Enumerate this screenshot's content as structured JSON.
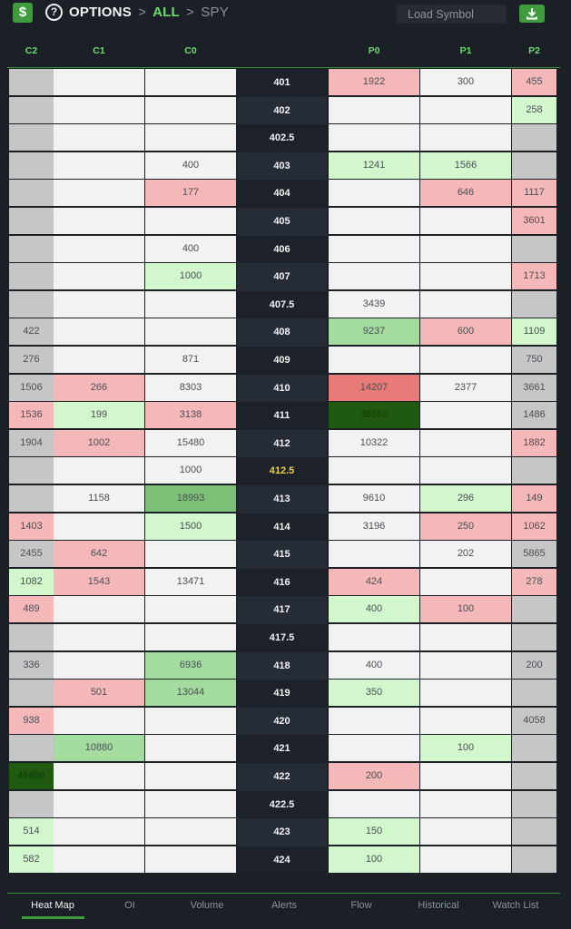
{
  "header": {
    "dollar_label": "$",
    "help_label": "?",
    "breadcrumb": {
      "options": "OPTIONS",
      "sep1": ">",
      "all": "ALL",
      "sep2": ">",
      "symbol": "SPY"
    },
    "symbol_placeholder": "Load Symbol",
    "download_icon": "download-icon"
  },
  "colors": {
    "accent": "#3f9b3d",
    "heat_red_light": "#f5b8b8",
    "heat_red_dark": "#e87a78",
    "heat_green_light": "#d2f7cc",
    "heat_green_mid": "#a4dca0",
    "heat_green_strong": "#7cc077",
    "heat_green_max": "#1f5a10"
  },
  "columns": [
    "C2",
    "C1",
    "C0",
    "P0",
    "P1",
    "P2"
  ],
  "rows": [
    {
      "strike": "401",
      "cells": [
        [
          "",
          "g"
        ],
        [
          "",
          "w"
        ],
        [
          "",
          "w"
        ],
        [
          "1922",
          "r1"
        ],
        [
          "300",
          "w"
        ],
        [
          "455",
          "r1"
        ]
      ]
    },
    {
      "strike": "402",
      "cells": [
        [
          "",
          "g"
        ],
        [
          "",
          "w"
        ],
        [
          "",
          "w"
        ],
        [
          "",
          "w"
        ],
        [
          "",
          "w"
        ],
        [
          "258",
          "g1"
        ]
      ]
    },
    {
      "strike": "402.5",
      "cells": [
        [
          "",
          "g"
        ],
        [
          "",
          "w"
        ],
        [
          "",
          "w"
        ],
        [
          "",
          "w"
        ],
        [
          "",
          "w"
        ],
        [
          "",
          "g"
        ]
      ]
    },
    {
      "strike": "403",
      "cells": [
        [
          "",
          "g"
        ],
        [
          "",
          "w"
        ],
        [
          "400",
          "w"
        ],
        [
          "1241",
          "g1"
        ],
        [
          "1566",
          "g1"
        ],
        [
          "",
          "g"
        ]
      ]
    },
    {
      "strike": "404",
      "cells": [
        [
          "",
          "g"
        ],
        [
          "",
          "w"
        ],
        [
          "177",
          "r1"
        ],
        [
          "",
          "w"
        ],
        [
          "646",
          "r1"
        ],
        [
          "1117",
          "r1"
        ]
      ]
    },
    {
      "strike": "405",
      "cells": [
        [
          "",
          "g"
        ],
        [
          "",
          "w"
        ],
        [
          "",
          "w"
        ],
        [
          "",
          "w"
        ],
        [
          "",
          "w"
        ],
        [
          "3601",
          "r1"
        ]
      ]
    },
    {
      "strike": "406",
      "cells": [
        [
          "",
          "g"
        ],
        [
          "",
          "w"
        ],
        [
          "400",
          "w"
        ],
        [
          "",
          "w"
        ],
        [
          "",
          "w"
        ],
        [
          "",
          "g"
        ]
      ]
    },
    {
      "strike": "407",
      "cells": [
        [
          "",
          "g"
        ],
        [
          "",
          "w"
        ],
        [
          "1000",
          "g1"
        ],
        [
          "",
          "w"
        ],
        [
          "",
          "w"
        ],
        [
          "1713",
          "r1"
        ]
      ]
    },
    {
      "strike": "407.5",
      "cells": [
        [
          "",
          "g"
        ],
        [
          "",
          "w"
        ],
        [
          "",
          "w"
        ],
        [
          "3439",
          "w"
        ],
        [
          "",
          "w"
        ],
        [
          "",
          "g"
        ]
      ]
    },
    {
      "strike": "408",
      "cells": [
        [
          "422",
          "g"
        ],
        [
          "",
          "w"
        ],
        [
          "",
          "w"
        ],
        [
          "9237",
          "g2"
        ],
        [
          "600",
          "r1"
        ],
        [
          "1109",
          "g1"
        ]
      ]
    },
    {
      "strike": "409",
      "cells": [
        [
          "276",
          "g"
        ],
        [
          "",
          "w"
        ],
        [
          "871",
          "w"
        ],
        [
          "",
          "w"
        ],
        [
          "",
          "w"
        ],
        [
          "750",
          "g"
        ]
      ]
    },
    {
      "strike": "410",
      "cells": [
        [
          "1506",
          "g"
        ],
        [
          "266",
          "r1"
        ],
        [
          "8303",
          "w"
        ],
        [
          "14207",
          "r2"
        ],
        [
          "2377",
          "w"
        ],
        [
          "3661",
          "g"
        ]
      ]
    },
    {
      "strike": "411",
      "cells": [
        [
          "1536",
          "r1"
        ],
        [
          "199",
          "g1"
        ],
        [
          "3138",
          "r1"
        ],
        [
          "38550",
          "g4"
        ],
        [
          "",
          "w"
        ],
        [
          "1486",
          "g"
        ]
      ]
    },
    {
      "strike": "412",
      "cells": [
        [
          "1904",
          "g"
        ],
        [
          "1002",
          "r1"
        ],
        [
          "15480",
          "w"
        ],
        [
          "10322",
          "w"
        ],
        [
          "",
          "w"
        ],
        [
          "1882",
          "r1"
        ]
      ]
    },
    {
      "strike": "412.5",
      "atm": true,
      "cells": [
        [
          "",
          "g"
        ],
        [
          "",
          "w"
        ],
        [
          "1000",
          "w"
        ],
        [
          "",
          "w"
        ],
        [
          "",
          "w"
        ],
        [
          "",
          "g"
        ]
      ]
    },
    {
      "strike": "413",
      "cells": [
        [
          "",
          "g"
        ],
        [
          "1158",
          "w"
        ],
        [
          "18993",
          "g3"
        ],
        [
          "9610",
          "w"
        ],
        [
          "296",
          "g1"
        ],
        [
          "149",
          "r1"
        ]
      ]
    },
    {
      "strike": "414",
      "cells": [
        [
          "1403",
          "r1"
        ],
        [
          "",
          "w"
        ],
        [
          "1500",
          "g1"
        ],
        [
          "3196",
          "w"
        ],
        [
          "250",
          "r1"
        ],
        [
          "1062",
          "r1"
        ]
      ]
    },
    {
      "strike": "415",
      "cells": [
        [
          "2455",
          "g"
        ],
        [
          "642",
          "r1"
        ],
        [
          "",
          "w"
        ],
        [
          "",
          "w"
        ],
        [
          "202",
          "w"
        ],
        [
          "5865",
          "g"
        ]
      ]
    },
    {
      "strike": "416",
      "cells": [
        [
          "1082",
          "g1"
        ],
        [
          "1543",
          "r1"
        ],
        [
          "13471",
          "w"
        ],
        [
          "424",
          "r1"
        ],
        [
          "",
          "w"
        ],
        [
          "278",
          "r1"
        ]
      ]
    },
    {
      "strike": "417",
      "cells": [
        [
          "489",
          "r1"
        ],
        [
          "",
          "w"
        ],
        [
          "",
          "w"
        ],
        [
          "400",
          "g1"
        ],
        [
          "100",
          "r1"
        ],
        [
          "",
          "g"
        ]
      ]
    },
    {
      "strike": "417.5",
      "cells": [
        [
          "",
          "g"
        ],
        [
          "",
          "w"
        ],
        [
          "",
          "w"
        ],
        [
          "",
          "w"
        ],
        [
          "",
          "w"
        ],
        [
          "",
          "g"
        ]
      ]
    },
    {
      "strike": "418",
      "cells": [
        [
          "336",
          "g"
        ],
        [
          "",
          "w"
        ],
        [
          "6936",
          "g2"
        ],
        [
          "400",
          "w"
        ],
        [
          "",
          "w"
        ],
        [
          "200",
          "g"
        ]
      ]
    },
    {
      "strike": "419",
      "cells": [
        [
          "",
          "g"
        ],
        [
          "501",
          "r1"
        ],
        [
          "13044",
          "g2"
        ],
        [
          "350",
          "g1"
        ],
        [
          "",
          "w"
        ],
        [
          "",
          "g"
        ]
      ]
    },
    {
      "strike": "420",
      "cells": [
        [
          "938",
          "r1"
        ],
        [
          "",
          "w"
        ],
        [
          "",
          "w"
        ],
        [
          "",
          "w"
        ],
        [
          "",
          "w"
        ],
        [
          "4058",
          "g"
        ]
      ]
    },
    {
      "strike": "421",
      "cells": [
        [
          "",
          "g"
        ],
        [
          "10880",
          "g2"
        ],
        [
          "",
          "w"
        ],
        [
          "",
          "w"
        ],
        [
          "100",
          "g1"
        ],
        [
          "",
          "g"
        ]
      ]
    },
    {
      "strike": "422",
      "cells": [
        [
          "46896",
          "g4"
        ],
        [
          "",
          "w"
        ],
        [
          "",
          "w"
        ],
        [
          "200",
          "r1"
        ],
        [
          "",
          "w"
        ],
        [
          "",
          "g"
        ]
      ]
    },
    {
      "strike": "422.5",
      "cells": [
        [
          "",
          "g"
        ],
        [
          "",
          "w"
        ],
        [
          "",
          "w"
        ],
        [
          "",
          "w"
        ],
        [
          "",
          "w"
        ],
        [
          "",
          "g"
        ]
      ]
    },
    {
      "strike": "423",
      "cells": [
        [
          "514",
          "g1"
        ],
        [
          "",
          "w"
        ],
        [
          "",
          "w"
        ],
        [
          "150",
          "g1"
        ],
        [
          "",
          "w"
        ],
        [
          "",
          "g"
        ]
      ]
    },
    {
      "strike": "424",
      "cells": [
        [
          "582",
          "g1"
        ],
        [
          "",
          "w"
        ],
        [
          "",
          "w"
        ],
        [
          "100",
          "g1"
        ],
        [
          "",
          "w"
        ],
        [
          "",
          "g"
        ]
      ]
    }
  ],
  "tabs": [
    {
      "label": "Heat Map",
      "active": true
    },
    {
      "label": "OI",
      "active": false
    },
    {
      "label": "Volume",
      "active": false
    },
    {
      "label": "Alerts",
      "active": false
    },
    {
      "label": "Flow",
      "active": false
    },
    {
      "label": "Historical",
      "active": false
    },
    {
      "label": "Watch List",
      "active": false
    }
  ]
}
